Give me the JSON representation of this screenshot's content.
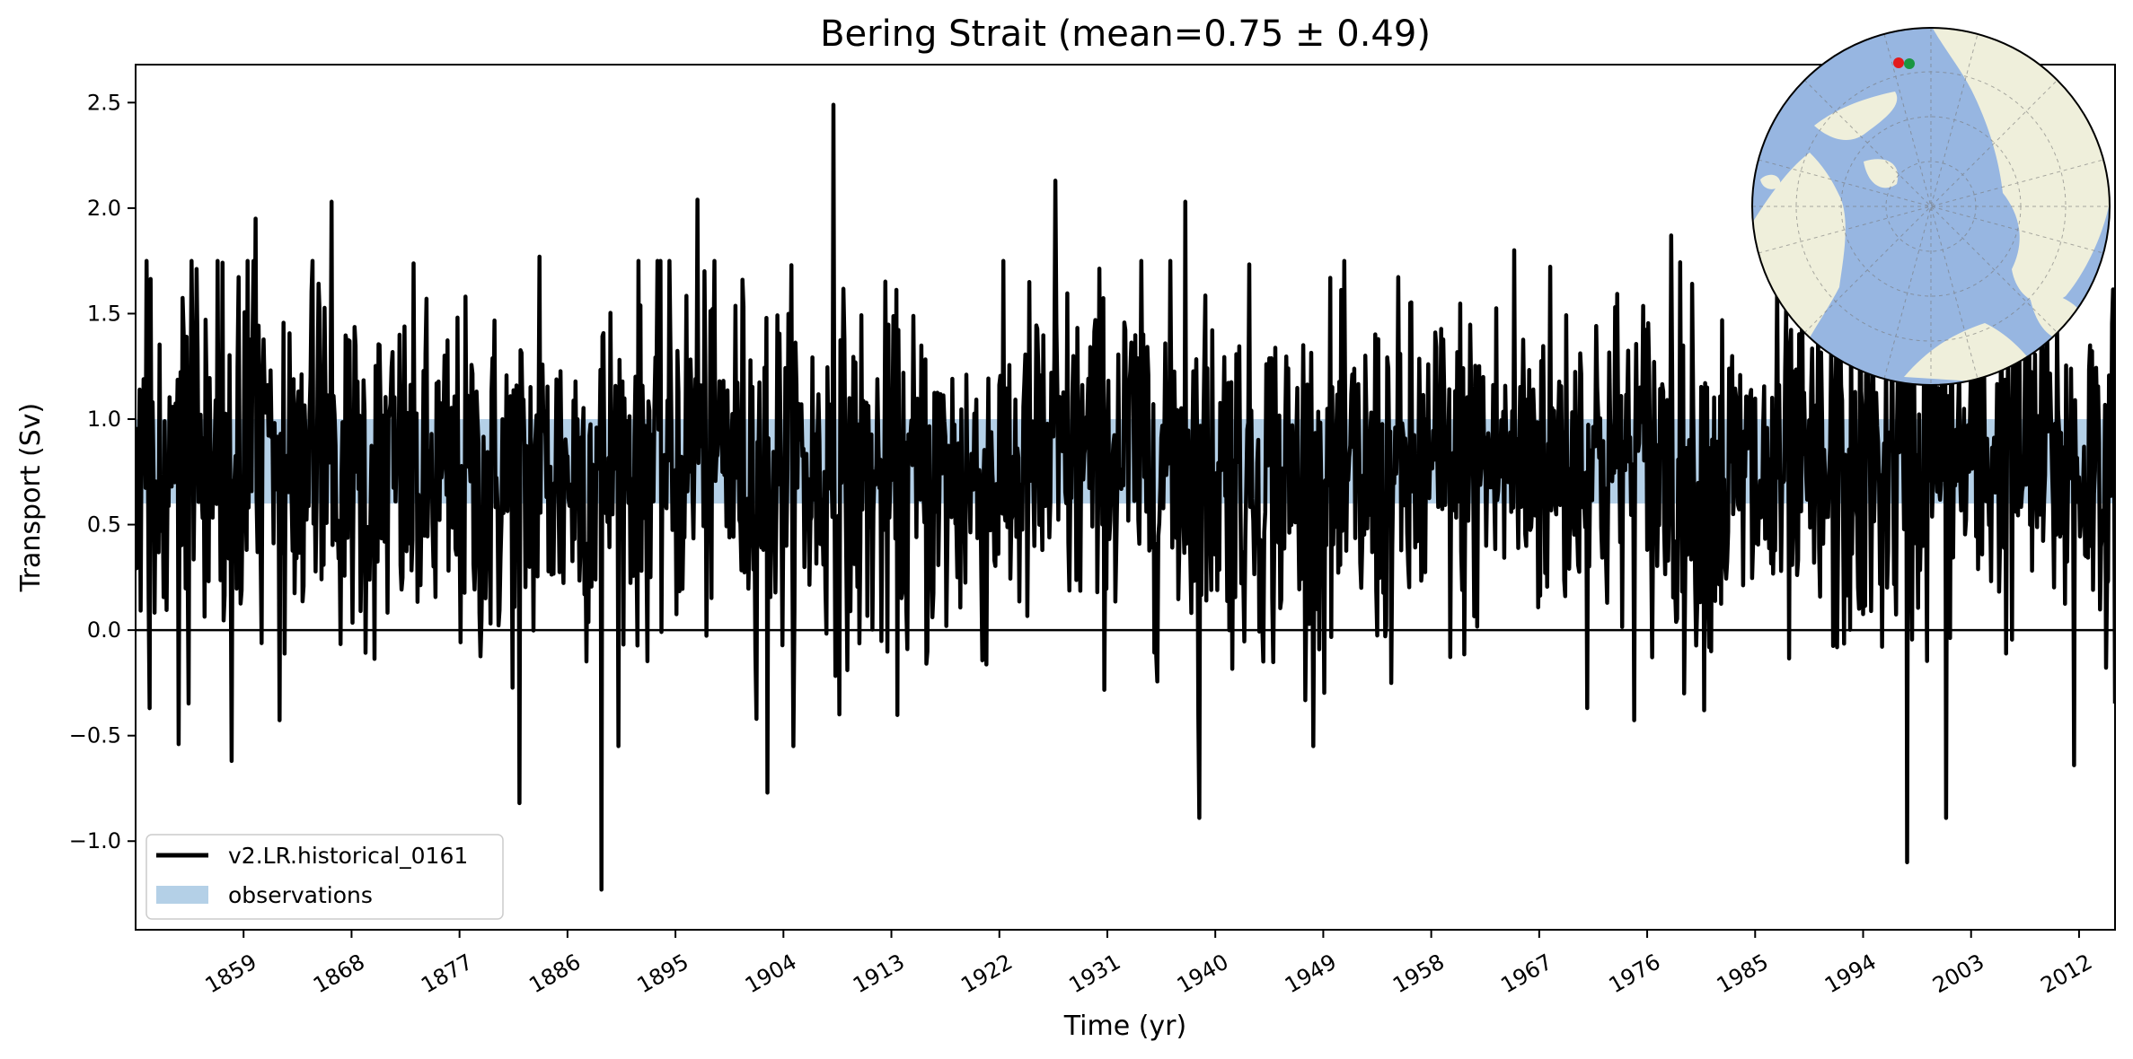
{
  "chart_data": {
    "type": "line",
    "title": "Bering Strait (mean=0.75 ± 0.49)",
    "xlabel": "Time (yr)",
    "ylabel": "Transport (Sv)",
    "xlim": [
      1850,
      2015
    ],
    "ylim": [
      -1.42,
      2.68
    ],
    "xticks": [
      1859,
      1868,
      1877,
      1886,
      1895,
      1904,
      1913,
      1922,
      1931,
      1940,
      1949,
      1958,
      1967,
      1976,
      1985,
      1994,
      2003,
      2012
    ],
    "yticks": [
      -1.0,
      -0.5,
      0.0,
      0.5,
      1.0,
      1.5,
      2.0,
      2.5
    ],
    "ytick_labels": [
      "−1.0",
      "−0.5",
      "0.0",
      "0.5",
      "1.0",
      "1.5",
      "2.0",
      "2.5"
    ],
    "zero_line": 0.0,
    "observations_band": [
      0.6,
      1.0
    ],
    "series": [
      {
        "name": "v2.LR.historical_0161",
        "color": "#000000",
        "resolution": "monthly (approximated)",
        "mean": 0.75,
        "std": 0.49,
        "notable_points": [
          {
            "x": 1851.2,
            "y": -0.37
          },
          {
            "x": 1853.6,
            "y": -0.54
          },
          {
            "x": 1858.0,
            "y": -0.62
          },
          {
            "x": 1860.0,
            "y": 1.95
          },
          {
            "x": 1866.3,
            "y": 2.03
          },
          {
            "x": 1882.0,
            "y": -0.82
          },
          {
            "x": 1883.7,
            "y": 1.77
          },
          {
            "x": 1888.8,
            "y": -1.23
          },
          {
            "x": 1896.8,
            "y": 2.04
          },
          {
            "x": 1902.7,
            "y": -0.77
          },
          {
            "x": 1908.2,
            "y": 2.49
          },
          {
            "x": 1926.7,
            "y": 2.13
          },
          {
            "x": 1937.5,
            "y": 2.03
          },
          {
            "x": 1938.7,
            "y": -0.89
          },
          {
            "x": 1964.9,
            "y": 1.8
          },
          {
            "x": 1978.0,
            "y": 1.87
          },
          {
            "x": 1997.7,
            "y": -1.1
          },
          {
            "x": 2000.9,
            "y": -0.89
          },
          {
            "x": 2011.6,
            "y": -0.64
          }
        ]
      }
    ],
    "legend": {
      "position": "lower-left",
      "entries": [
        {
          "label": "v2.LR.historical_0161",
          "kind": "line",
          "color": "#000000"
        },
        {
          "label": "observations",
          "kind": "patch",
          "color": "#b4d0e7"
        }
      ]
    },
    "inset_map": {
      "projection": "north-polar-stereographic",
      "ocean_color": "#97b6e1",
      "land_color": "#efefdb",
      "markers": [
        {
          "name": "start",
          "color": "#e31a1c"
        },
        {
          "name": "end",
          "color": "#1a9641"
        }
      ]
    }
  }
}
